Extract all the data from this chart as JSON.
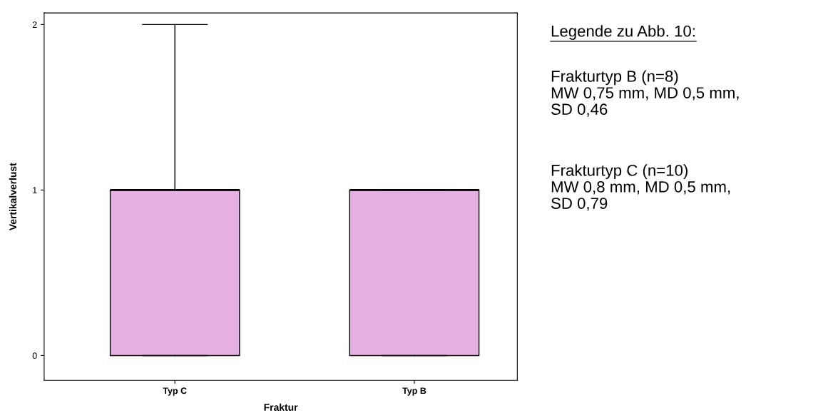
{
  "chart_data": {
    "type": "box",
    "xlabel": "Fraktur",
    "ylabel": "Vertikalverlust",
    "categories": [
      "Typ C",
      "Typ B"
    ],
    "boxes": [
      {
        "low": 0,
        "q1": 0,
        "median": 1,
        "q3": 1,
        "high": 2
      },
      {
        "low": 0,
        "q1": 0,
        "median": 1,
        "q3": 1,
        "high": 1
      }
    ],
    "color": "#e6b0e3",
    "ylim": [
      -0.15,
      2.07
    ],
    "yticks": [
      0,
      1,
      2
    ],
    "grid": false,
    "legend": false,
    "annotations": [
      "Legende zu Abb. 10:",
      "Frakturtyp B (n=8)\nMW 0,75 mm, MD 0,5 mm,\nSD 0,46",
      "Frakturtyp C (n=10)\nMW 0,8 mm, MD 0,5 mm,\nSD 0,79"
    ]
  }
}
